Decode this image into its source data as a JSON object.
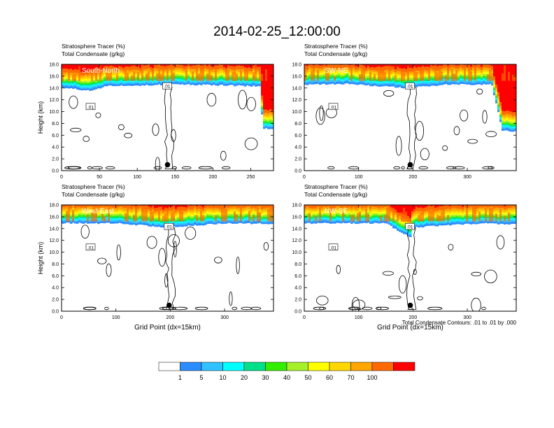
{
  "title": "2014-02-25_12:00:00",
  "colors": {
    "background": "#ffffff",
    "contour": "#000000",
    "marker": "#000000",
    "bin_colors": [
      "#ffffff",
      "#2b8cff",
      "#2fc2ff",
      "#00ffff",
      "#00e08a",
      "#33ee00",
      "#a6f02a",
      "#ffff00",
      "#ffd700",
      "#ffa600",
      "#ff6a00",
      "#ff0000"
    ]
  },
  "colorbar": {
    "labels": [
      "1",
      "5",
      "10",
      "20",
      "30",
      "40",
      "50",
      "60",
      "70",
      "100"
    ]
  },
  "footnote": "Total Condensate Contours: .01 to .01 by .000",
  "chart_data": [
    {
      "type": "heatmap",
      "panel_label": "South-North",
      "title_line1": "Stratosphere Tracer   (%)",
      "title_line2": "Total Condensate   (g/kg)",
      "ylabel": "Height (km)",
      "xlabel": "",
      "xlim": [
        0,
        280
      ],
      "ylim": [
        0,
        18
      ],
      "x_ticks": [
        0,
        50,
        100,
        150,
        200,
        250
      ],
      "y_ticks": [
        "0.0",
        "2.0",
        "4.0",
        "6.0",
        "8.0",
        "10.0",
        "12.0",
        "14.0",
        "16.0",
        "18.0"
      ],
      "tropopause_base_km": 14.3,
      "tropopause_profile": [
        [
          0,
          14.1
        ],
        [
          40,
          13.5
        ],
        [
          60,
          14.4
        ],
        [
          120,
          14.5
        ],
        [
          145,
          14.6
        ],
        [
          200,
          14.5
        ],
        [
          262,
          14.3
        ],
        [
          266,
          7.2
        ],
        [
          280,
          7.0
        ]
      ],
      "marker": {
        "x": 140,
        "y": 1.0
      },
      "contour_label": ".01"
    },
    {
      "type": "heatmap",
      "panel_label": "SW-NE",
      "title_line1": "Stratosphere Tracer   (%)",
      "title_line2": "Total Condensate   (g/kg)",
      "ylabel": "",
      "xlabel": "",
      "xlim": [
        0,
        390
      ],
      "ylim": [
        0,
        18
      ],
      "x_ticks": [
        0,
        100,
        200,
        300
      ],
      "y_ticks": [
        "0.0",
        "2.0",
        "4.0",
        "6.0",
        "8.0",
        "10.0",
        "12.0",
        "14.0",
        "16.0",
        "18.0"
      ],
      "tropopause_base_km": 14.6,
      "tropopause_profile": [
        [
          0,
          14.6
        ],
        [
          80,
          14.7
        ],
        [
          190,
          14.0
        ],
        [
          260,
          14.6
        ],
        [
          345,
          14.6
        ],
        [
          365,
          6.8
        ],
        [
          390,
          6.6
        ]
      ],
      "marker": {
        "x": 195,
        "y": 1.0
      },
      "contour_label": ".01"
    },
    {
      "type": "heatmap",
      "panel_label": "West-East",
      "title_line1": "Stratosphere Tracer   (%)",
      "title_line2": "Total Condensate   (g/kg)",
      "ylabel": "Height (km)",
      "xlabel": "Grid Point (dx=15km)",
      "xlim": [
        0,
        390
      ],
      "ylim": [
        0,
        18
      ],
      "x_ticks": [
        0,
        100,
        200,
        300
      ],
      "y_ticks": [
        "0.0",
        "2.0",
        "4.0",
        "6.0",
        "8.0",
        "10.0",
        "12.0",
        "14.0",
        "16.0",
        "18.0"
      ],
      "tropopause_base_km": 14.9,
      "tropopause_profile": [
        [
          0,
          14.9
        ],
        [
          100,
          14.9
        ],
        [
          195,
          14.2
        ],
        [
          300,
          14.9
        ],
        [
          390,
          14.8
        ]
      ],
      "marker": {
        "x": 198,
        "y": 1.0
      },
      "contour_label": ".01"
    },
    {
      "type": "heatmap",
      "panel_label": "NW-SE",
      "title_line1": "Stratosphere Tracer   (%)",
      "title_line2": "Total Condensate   (g/kg)",
      "ylabel": "",
      "xlabel": "Grid Point (dx=15km)",
      "xlim": [
        0,
        390
      ],
      "ylim": [
        0,
        18
      ],
      "x_ticks": [
        0,
        100,
        200,
        300
      ],
      "y_ticks": [
        "0.0",
        "2.0",
        "4.0",
        "6.0",
        "8.0",
        "10.0",
        "12.0",
        "14.0",
        "16.0",
        "18.0"
      ],
      "tropopause_base_km": 14.9,
      "tropopause_profile": [
        [
          0,
          14.9
        ],
        [
          150,
          14.9
        ],
        [
          195,
          12.5
        ],
        [
          200,
          14.2
        ],
        [
          330,
          14.9
        ],
        [
          390,
          14.7
        ]
      ],
      "marker": {
        "x": 195,
        "y": 1.0
      },
      "contour_label": ".01"
    }
  ]
}
